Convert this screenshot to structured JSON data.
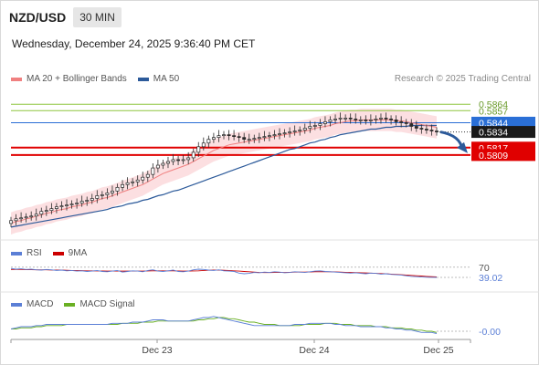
{
  "header": {
    "symbol": "NZD/USD",
    "timeframe": "30 MIN",
    "datetime": "Wednesday, December 24, 2025 9:36:40 PM CET"
  },
  "legend": {
    "ma20_label": "MA 20 + Bollinger Bands",
    "ma50_label": "MA 50",
    "copyright": "Research © 2025 Trading Central"
  },
  "colors": {
    "ma20": "#f08080",
    "bollinger_fill": "#fbd9dc",
    "ma50": "#2c5a9a",
    "candle": "#2a2a2a",
    "green_level": "#8dc63f",
    "blue_level": "#2a6fd6",
    "red_level": "#e00000",
    "rsi": "#5b7fd6",
    "rsi_ma": "#cc0000",
    "macd": "#5b7fd6",
    "macd_signal": "#6ab023",
    "arrow": "#2c5a9a"
  },
  "chart_data": [
    {
      "type": "candlestick",
      "panel": "price",
      "ylim": [
        0.5722,
        0.588
      ],
      "x_ticks": [
        "Dec 23",
        "Dec 24",
        "Dec 25"
      ],
      "levels": [
        {
          "value": 0.5864,
          "label": "0.5864",
          "kind": "resistance",
          "color": "#8dc63f"
        },
        {
          "value": 0.5857,
          "label": "0.5857",
          "kind": "resistance",
          "color": "#8dc63f"
        },
        {
          "value": 0.5844,
          "label": "0.5844",
          "kind": "pivot",
          "color": "#2a6fd6"
        },
        {
          "value": 0.5817,
          "label": "0.5817",
          "kind": "support",
          "color": "#e00000"
        },
        {
          "value": 0.5809,
          "label": "0.5809",
          "kind": "support",
          "color": "#e00000"
        }
      ],
      "last_price": {
        "value": 0.5834,
        "label": "0.5834"
      },
      "close": [
        0.5738,
        0.574,
        0.5741,
        0.5742,
        0.5743,
        0.5745,
        0.5748,
        0.5749,
        0.5751,
        0.5753,
        0.5754,
        0.5755,
        0.5756,
        0.5757,
        0.5759,
        0.576,
        0.5762,
        0.5765,
        0.5766,
        0.5768,
        0.577,
        0.5774,
        0.5777,
        0.5779,
        0.578,
        0.5782,
        0.5785,
        0.5788,
        0.5795,
        0.5798,
        0.58,
        0.5802,
        0.5804,
        0.5803,
        0.5804,
        0.5806,
        0.5812,
        0.5818,
        0.5822,
        0.5826,
        0.5828,
        0.583,
        0.5831,
        0.583,
        0.5829,
        0.5828,
        0.5826,
        0.5826,
        0.5827,
        0.5828,
        0.5829,
        0.583,
        0.5831,
        0.5832,
        0.5833,
        0.5834,
        0.5835,
        0.5836,
        0.5838,
        0.584,
        0.5841,
        0.5843,
        0.5845,
        0.5847,
        0.5848,
        0.5849,
        0.5849,
        0.5848,
        0.5847,
        0.5847,
        0.5846,
        0.5847,
        0.5848,
        0.5849,
        0.5848,
        0.5847,
        0.5845,
        0.5844,
        0.5843,
        0.584,
        0.5838,
        0.5837,
        0.5836,
        0.5835,
        0.5834
      ],
      "ma20": [
        0.5735,
        0.5737,
        0.5738,
        0.574,
        0.5741,
        0.5743,
        0.5744,
        0.5746,
        0.5747,
        0.5749,
        0.575,
        0.5751,
        0.5753,
        0.5754,
        0.5755,
        0.5757,
        0.5758,
        0.576,
        0.5762,
        0.5763,
        0.5765,
        0.5767,
        0.5769,
        0.5771,
        0.5773,
        0.5775,
        0.5777,
        0.578,
        0.5783,
        0.5786,
        0.5789,
        0.5791,
        0.5793,
        0.5795,
        0.5797,
        0.5799,
        0.5802,
        0.5805,
        0.5808,
        0.5811,
        0.5814,
        0.5816,
        0.5818,
        0.582,
        0.5821,
        0.5822,
        0.5823,
        0.5824,
        0.5825,
        0.5826,
        0.5827,
        0.5828,
        0.5829,
        0.583,
        0.5831,
        0.5832,
        0.5833,
        0.5834,
        0.5835,
        0.5836,
        0.5838,
        0.5839,
        0.584,
        0.5841,
        0.5843,
        0.5844,
        0.5845,
        0.5846,
        0.5846,
        0.5847,
        0.5847,
        0.5847,
        0.5847,
        0.5847,
        0.5847,
        0.5847,
        0.5846,
        0.5846,
        0.5845,
        0.5844,
        0.5843,
        0.5842,
        0.5841,
        0.584,
        0.5839
      ],
      "ma50": [
        0.5731,
        0.5732,
        0.5733,
        0.5734,
        0.5735,
        0.5736,
        0.5737,
        0.5738,
        0.5739,
        0.574,
        0.5741,
        0.5742,
        0.5743,
        0.5744,
        0.5745,
        0.5746,
        0.5747,
        0.5748,
        0.5749,
        0.575,
        0.5752,
        0.5753,
        0.5754,
        0.5756,
        0.5757,
        0.5758,
        0.576,
        0.5761,
        0.5763,
        0.5765,
        0.5766,
        0.5768,
        0.577,
        0.5771,
        0.5773,
        0.5775,
        0.5777,
        0.5779,
        0.5781,
        0.5783,
        0.5785,
        0.5787,
        0.5789,
        0.5791,
        0.5793,
        0.5795,
        0.5797,
        0.5799,
        0.5801,
        0.5803,
        0.5805,
        0.5807,
        0.5809,
        0.5811,
        0.5813,
        0.5815,
        0.5816,
        0.5818,
        0.582,
        0.5822,
        0.5823,
        0.5825,
        0.5826,
        0.5828,
        0.5829,
        0.5831,
        0.5832,
        0.5833,
        0.5834,
        0.5835,
        0.5836,
        0.5837,
        0.5837,
        0.5838,
        0.5839,
        0.5839,
        0.584,
        0.584,
        0.584,
        0.5841,
        0.5841,
        0.5841,
        0.5841,
        0.5841,
        0.5841
      ],
      "bollinger_width": 0.0012
    },
    {
      "type": "line",
      "panel": "rsi",
      "legend": [
        "RSI",
        "9MA"
      ],
      "ylim": [
        0,
        100
      ],
      "reference": {
        "value": 70,
        "label": "70"
      },
      "last_value": {
        "value": 39.02,
        "label": "39.02"
      },
      "series": [
        {
          "name": "RSI",
          "values": [
            66,
            64,
            65,
            63,
            64,
            62,
            61,
            63,
            62,
            60,
            61,
            59,
            60,
            58,
            59,
            57,
            58,
            60,
            57,
            56,
            58,
            60,
            55,
            57,
            59,
            58,
            56,
            60,
            62,
            58,
            57,
            59,
            61,
            57,
            56,
            58,
            62,
            64,
            63,
            61,
            60,
            62,
            59,
            58,
            57,
            52,
            50,
            51,
            54,
            53,
            55,
            54,
            56,
            55,
            53,
            54,
            56,
            55,
            54,
            56,
            58,
            59,
            57,
            56,
            55,
            54,
            53,
            52,
            53,
            51,
            50,
            52,
            51,
            49,
            50,
            48,
            47,
            46,
            44,
            42,
            41,
            40,
            39.5,
            39.2,
            39.02
          ]
        },
        {
          "name": "9MA",
          "values": [
            63,
            63,
            63,
            62.5,
            62.5,
            62,
            62,
            62,
            61.5,
            61,
            61,
            60.5,
            60,
            60,
            59.5,
            59,
            59,
            58.5,
            58.5,
            58,
            58,
            58,
            58,
            58,
            58,
            58,
            58,
            58.5,
            59,
            59,
            59,
            59,
            59,
            58.5,
            58,
            58,
            58.5,
            59,
            60,
            60.5,
            61,
            61,
            60.5,
            60,
            59,
            58,
            57,
            56,
            55,
            54,
            53.5,
            53.5,
            54,
            54,
            54,
            54.5,
            55,
            55,
            55,
            55.5,
            56,
            56,
            56,
            56,
            55.5,
            55,
            54.5,
            54,
            53.5,
            53,
            52.5,
            52,
            51,
            50.5,
            50,
            49,
            48,
            47,
            46,
            45,
            44,
            43,
            42,
            41,
            40.5
          ]
        }
      ]
    },
    {
      "type": "line",
      "panel": "macd",
      "legend": [
        "MACD",
        "MACD Signal"
      ],
      "last_value": {
        "value": -0.0,
        "label": "-0.00"
      },
      "series": [
        {
          "name": "MACD",
          "values": [
            0.0002,
            0.0003,
            0.0004,
            0.0004,
            0.0004,
            0.0005,
            0.0005,
            0.0006,
            0.0006,
            0.0006,
            0.0006,
            0.0006,
            0.0006,
            0.0006,
            0.0006,
            0.0006,
            0.0006,
            0.0006,
            0.0006,
            0.0006,
            0.0007,
            0.0007,
            0.0007,
            0.0007,
            0.0008,
            0.0008,
            0.0008,
            0.0009,
            0.001,
            0.001,
            0.001,
            0.0009,
            0.0009,
            0.0009,
            0.0009,
            0.0009,
            0.001,
            0.0011,
            0.0012,
            0.0012,
            0.0013,
            0.0012,
            0.0011,
            0.001,
            0.0009,
            0.0008,
            0.0007,
            0.0006,
            0.0005,
            0.0005,
            0.0005,
            0.0005,
            0.0005,
            0.0005,
            0.0005,
            0.0005,
            0.0006,
            0.0006,
            0.0006,
            0.0007,
            0.0007,
            0.0007,
            0.0007,
            0.0007,
            0.0006,
            0.0006,
            0.0005,
            0.0005,
            0.0005,
            0.0004,
            0.0004,
            0.0004,
            0.0004,
            0.0004,
            0.0003,
            0.0003,
            0.0002,
            0.0002,
            0.0001,
            0.0001,
            0.0,
            -0.0001,
            -0.0001,
            -0.0001,
            -0.0002
          ]
        },
        {
          "name": "MACD Signal",
          "values": [
            0.0002,
            0.0002,
            0.0003,
            0.0003,
            0.0003,
            0.0004,
            0.0004,
            0.0005,
            0.0005,
            0.0005,
            0.0005,
            0.0006,
            0.0006,
            0.0006,
            0.0006,
            0.0006,
            0.0006,
            0.0006,
            0.0006,
            0.0006,
            0.0006,
            0.0006,
            0.0007,
            0.0007,
            0.0007,
            0.0007,
            0.0008,
            0.0008,
            0.0008,
            0.0009,
            0.0009,
            0.0009,
            0.0009,
            0.0009,
            0.0009,
            0.0009,
            0.0009,
            0.001,
            0.001,
            0.0011,
            0.0011,
            0.0012,
            0.0012,
            0.0011,
            0.0011,
            0.001,
            0.0009,
            0.0008,
            0.0008,
            0.0007,
            0.0006,
            0.0006,
            0.0006,
            0.0005,
            0.0005,
            0.0005,
            0.0005,
            0.0005,
            0.0006,
            0.0006,
            0.0006,
            0.0006,
            0.0007,
            0.0007,
            0.0007,
            0.0006,
            0.0006,
            0.0006,
            0.0005,
            0.0005,
            0.0005,
            0.0005,
            0.0004,
            0.0004,
            0.0004,
            0.0003,
            0.0003,
            0.0003,
            0.0002,
            0.0002,
            0.0001,
            0.0001,
            0.0,
            0.0,
            -0.0001
          ]
        }
      ]
    }
  ]
}
